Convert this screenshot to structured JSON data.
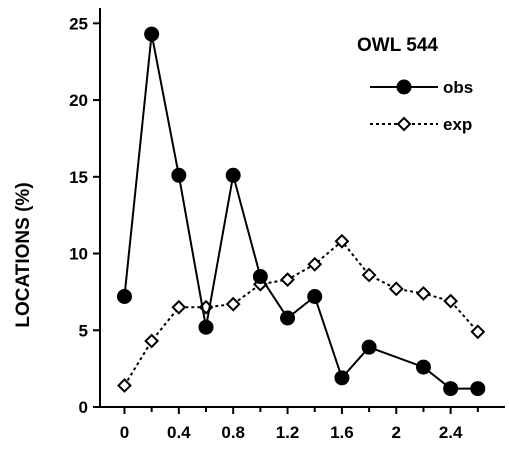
{
  "chart_data": {
    "type": "line",
    "title": "OWL 544",
    "xlabel": "",
    "ylabel": "LOCATIONS (%)",
    "xlim": [
      -0.18,
      2.8
    ],
    "ylim": [
      0,
      26
    ],
    "xticks": [
      0,
      0.4,
      0.8,
      1.2,
      1.6,
      2,
      2.4
    ],
    "xtick_labels": [
      "0",
      "0.4",
      "0.8",
      "1.2",
      "1.6",
      "2",
      "2.4"
    ],
    "yticks": [
      0,
      5,
      10,
      15,
      20,
      25
    ],
    "ytick_labels": [
      "0",
      "5",
      "10",
      "15",
      "20",
      "25"
    ],
    "grid": false,
    "legend_position": "top-right",
    "series": [
      {
        "name": "obs",
        "line_style": "solid",
        "marker": "filled-circle",
        "color": "#000000",
        "x": [
          0,
          0.2,
          0.4,
          0.6,
          0.8,
          1.0,
          1.2,
          1.4,
          1.6,
          1.8,
          2.2,
          2.4,
          2.6
        ],
        "values": [
          7.2,
          24.3,
          15.1,
          5.2,
          15.1,
          8.5,
          5.8,
          7.2,
          1.9,
          3.9,
          2.6,
          1.2,
          1.2
        ]
      },
      {
        "name": "exp",
        "line_style": "dotted",
        "marker": "open-diamond",
        "color": "#000000",
        "x": [
          0,
          0.2,
          0.4,
          0.6,
          0.8,
          1.0,
          1.2,
          1.4,
          1.6,
          1.8,
          2.0,
          2.2,
          2.4,
          2.6
        ],
        "values": [
          1.4,
          4.3,
          6.5,
          6.5,
          6.7,
          8.0,
          8.3,
          9.3,
          10.8,
          8.6,
          7.7,
          7.4,
          6.9,
          4.9
        ]
      }
    ]
  }
}
